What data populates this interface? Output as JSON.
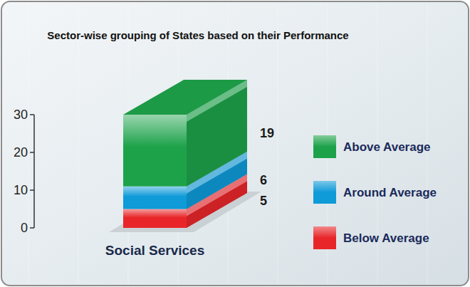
{
  "chart_data": {
    "type": "bar",
    "title": "Sector-wise grouping of States based on their Performance",
    "categories": [
      "Social Services"
    ],
    "series": [
      {
        "name": "Below Average",
        "color": "#e8262a",
        "values": [
          5
        ]
      },
      {
        "name": "Around Average",
        "color": "#0f9ad8",
        "values": [
          6
        ]
      },
      {
        "name": "Above Average",
        "color": "#1da24a",
        "values": [
          19
        ]
      }
    ],
    "stacked": true,
    "data_labels": true,
    "legend": "right",
    "ylim": [
      0,
      30
    ],
    "yticks": [
      0,
      10,
      20,
      30
    ]
  }
}
